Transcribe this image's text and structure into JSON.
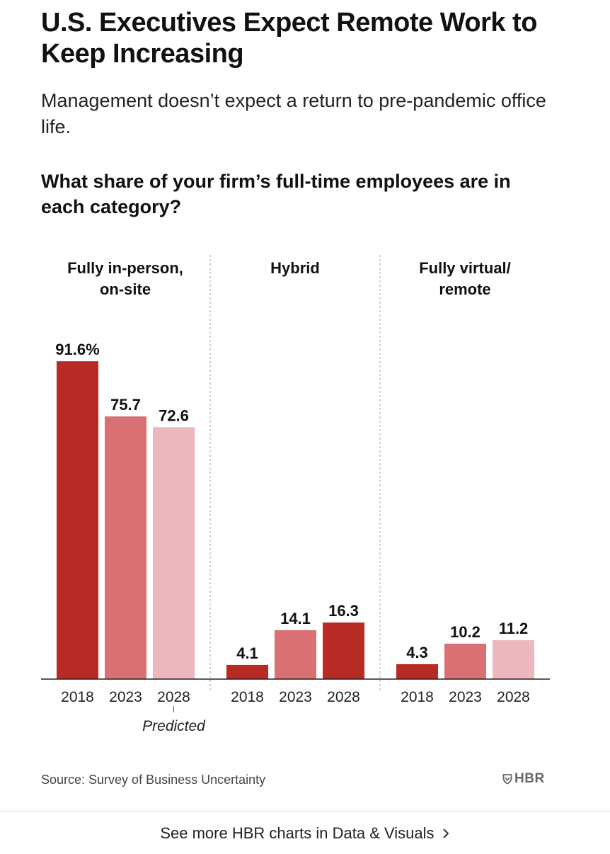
{
  "header": {
    "title": "U.S. Executives Expect Remote Work to Keep Increasing",
    "subtitle": "Management doesn’t expect a return to pre-pandemic office life.",
    "question": "What share of your firm’s full-time employees are in each category?"
  },
  "chart_data": {
    "type": "bar",
    "title": "What share of your firm’s full-time employees are in each category?",
    "groups": [
      {
        "label_lines": [
          "Fully in-person,",
          "on-site"
        ],
        "bars": [
          {
            "year": "2018",
            "value": 91.6,
            "label": "91.6%",
            "color": "#b82a24"
          },
          {
            "year": "2023",
            "value": 75.7,
            "label": "75.7",
            "color": "#d97073"
          },
          {
            "year": "2028",
            "value": 72.6,
            "label": "72.6",
            "color": "#ecb7bd"
          }
        ]
      },
      {
        "label_lines": [
          "Hybrid"
        ],
        "bars": [
          {
            "year": "2018",
            "value": 4.1,
            "label": "4.1",
            "color": "#b82a24"
          },
          {
            "year": "2023",
            "value": 14.1,
            "label": "14.1",
            "color": "#d97073"
          },
          {
            "year": "2028",
            "value": 16.3,
            "label": "16.3",
            "color": "#b82a24"
          }
        ]
      },
      {
        "label_lines": [
          "Fully virtual/",
          "remote"
        ],
        "bars": [
          {
            "year": "2018",
            "value": 4.3,
            "label": "4.3",
            "color": "#b82a24"
          },
          {
            "year": "2023",
            "value": 10.2,
            "label": "10.2",
            "color": "#d97073"
          },
          {
            "year": "2028",
            "value": 11.2,
            "label": "11.2",
            "color": "#ecb7bd"
          }
        ]
      }
    ],
    "annotation": "Predicted",
    "ylim": [
      0,
      100
    ],
    "grid": false,
    "colors": {
      "c2018": "#b82a24",
      "c2023": "#d97073",
      "c2028": "#ecb7bd"
    }
  },
  "footer": {
    "source": "Source: Survey of Business Uncertainty",
    "logo": "HBR",
    "logo_icon": "hbr-shield-icon",
    "more_link": "See more HBR charts in Data & Visuals",
    "more_link_icon": "chevron-right-icon"
  }
}
